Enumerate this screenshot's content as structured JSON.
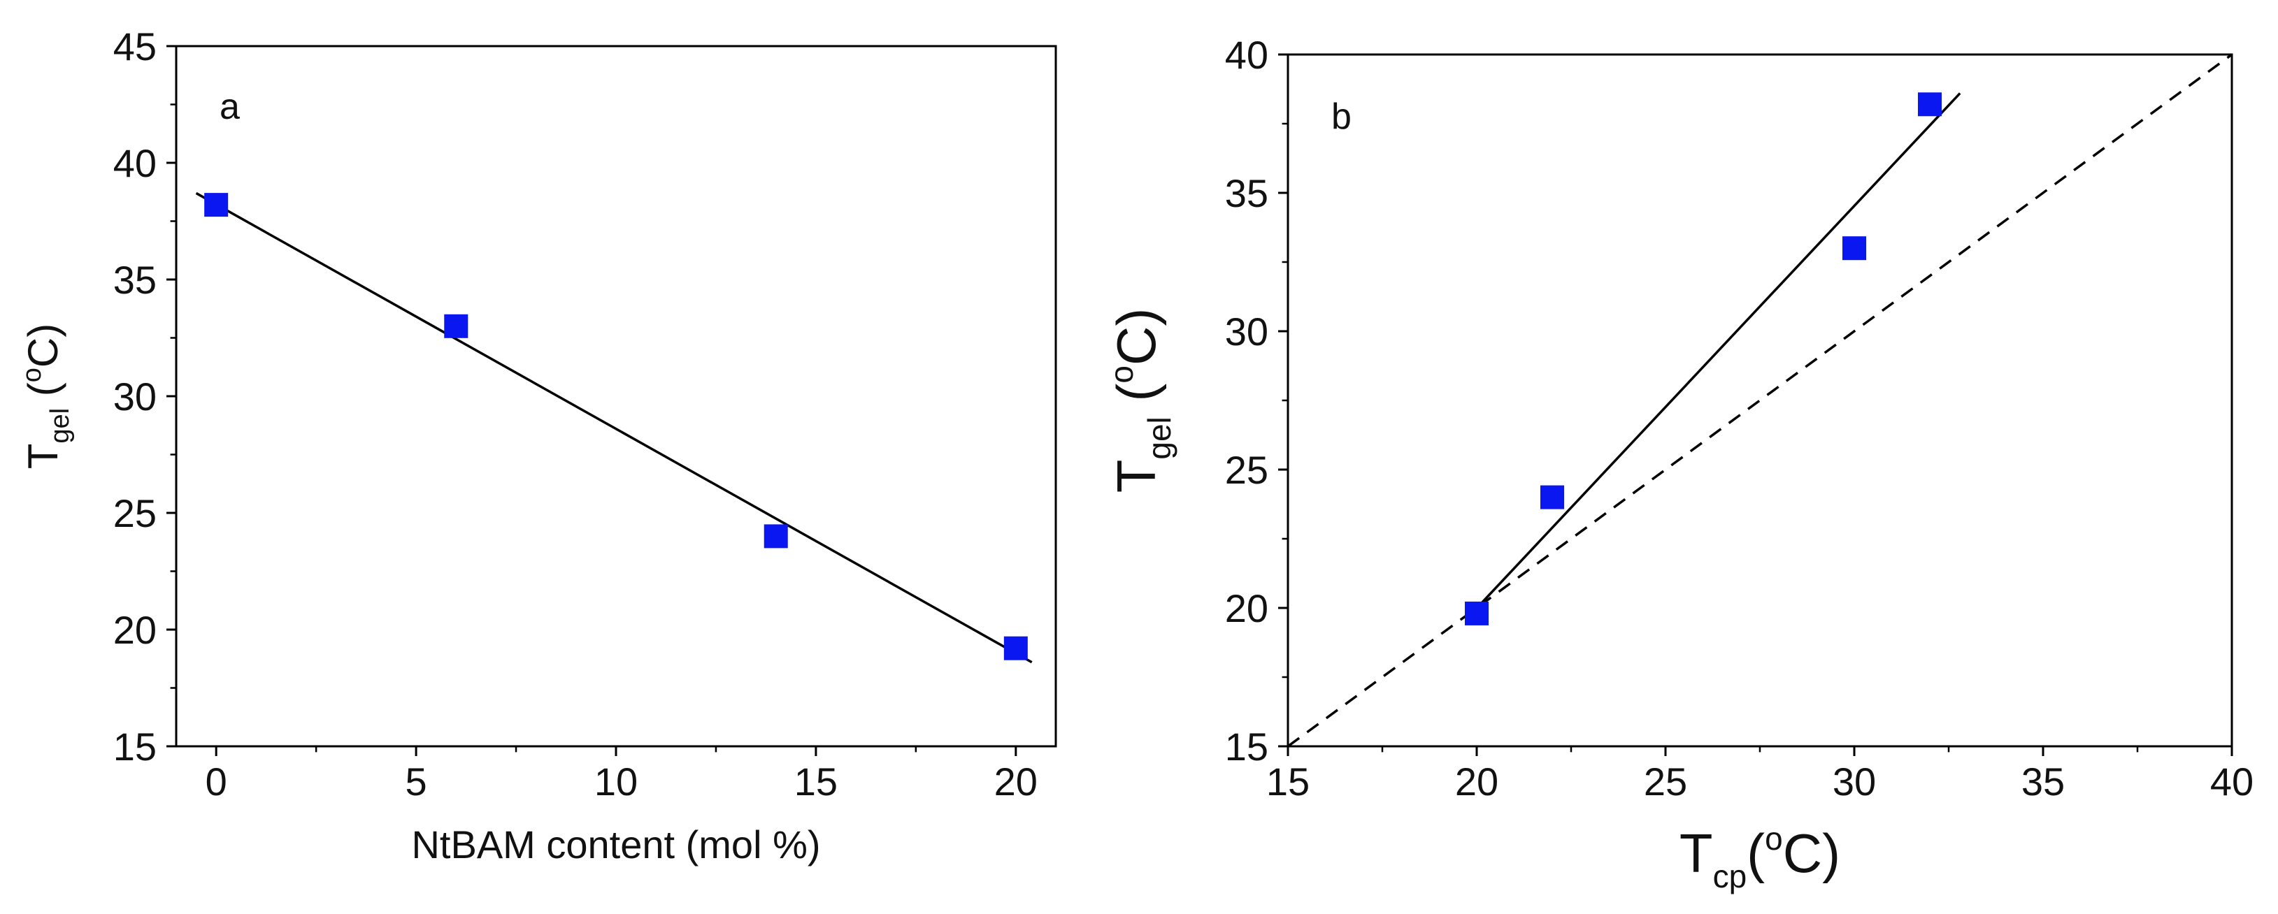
{
  "colors": {
    "marker": "#0a17f0",
    "line": "#000000"
  },
  "chart_data": [
    {
      "type": "scatter",
      "panel_label": "a",
      "xlabel": "NtBAM content (mol %)",
      "ylabel": {
        "main": "T",
        "sub": "gel",
        "unit_open": " (",
        "unit_sup": "o",
        "unit_close": "C)"
      },
      "xlim": [
        -1,
        21
      ],
      "ylim": [
        15,
        45
      ],
      "xticks": [
        0,
        5,
        10,
        15,
        20
      ],
      "yticks": [
        15,
        20,
        25,
        30,
        35,
        40,
        45
      ],
      "xtick_labels": [
        "0",
        "5",
        "10",
        "15",
        "20"
      ],
      "ytick_labels": [
        "15",
        "20",
        "25",
        "30",
        "35",
        "40",
        "45"
      ],
      "series": [
        {
          "name": "Tgel",
          "marker": "square",
          "x": [
            0,
            6,
            14,
            20
          ],
          "y": [
            38.2,
            33.0,
            24.0,
            19.2
          ]
        }
      ],
      "lines": [
        {
          "name": "linear fit",
          "style": "solid",
          "x": [
            -0.5,
            20.4
          ],
          "y": [
            38.7,
            18.6
          ]
        }
      ]
    },
    {
      "type": "scatter",
      "panel_label": "b",
      "xlabel": {
        "main": "T",
        "sub": "cp",
        "unit_open": "(",
        "unit_sup": "o",
        "unit_close": "C)"
      },
      "ylabel": {
        "main": "T",
        "sub": "gel",
        "unit_open": " (",
        "unit_sup": "o",
        "unit_close": "C)"
      },
      "xlim": [
        15,
        40
      ],
      "ylim": [
        15,
        40
      ],
      "xticks": [
        15,
        20,
        25,
        30,
        35,
        40
      ],
      "yticks": [
        15,
        20,
        25,
        30,
        35,
        40
      ],
      "xtick_labels": [
        "15",
        "20",
        "25",
        "30",
        "35",
        "40"
      ],
      "ytick_labels": [
        "15",
        "20",
        "25",
        "30",
        "35",
        "40"
      ],
      "series": [
        {
          "name": "Tgel vs Tcp",
          "marker": "square",
          "x": [
            20,
            22,
            30,
            32
          ],
          "y": [
            19.8,
            24.0,
            33.0,
            38.2
          ]
        }
      ],
      "lines": [
        {
          "name": "linear fit",
          "style": "solid",
          "x": [
            19.8,
            32.8
          ],
          "y": [
            19.7,
            38.6
          ]
        },
        {
          "name": "y = x",
          "style": "dashed",
          "x": [
            15,
            40
          ],
          "y": [
            15,
            40
          ]
        }
      ]
    }
  ]
}
